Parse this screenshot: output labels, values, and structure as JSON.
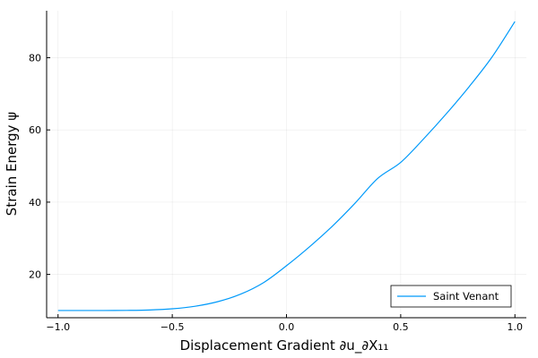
{
  "colors": {
    "series": "#009AFA",
    "background": "#FFFFFF",
    "axis": "#000000"
  },
  "chart_data": {
    "type": "line",
    "title": "",
    "xlabel": "Displacement Gradient ∂u_∂X₁₁",
    "ylabel": "Strain Energy ψ",
    "xlim": [
      -1.05,
      1.05
    ],
    "ylim": [
      8,
      93
    ],
    "x_ticks": [
      -1.0,
      -0.5,
      0.0,
      0.5,
      1.0
    ],
    "x_tick_labels": [
      "−1.0",
      "−0.5",
      "0.0",
      "0.5",
      "1.0"
    ],
    "y_ticks": [
      20,
      40,
      60,
      80
    ],
    "y_tick_labels": [
      "20",
      "40",
      "60",
      "80"
    ],
    "grid": true,
    "legend_position": "bottom-right",
    "series": [
      {
        "name": "Saint Venant",
        "color": "#009AFA",
        "x": [
          -1.0,
          -0.9,
          -0.8,
          -0.7,
          -0.6,
          -0.5,
          -0.4,
          -0.3,
          -0.2,
          -0.1,
          0.0,
          0.1,
          0.2,
          0.3,
          0.4,
          0.5,
          0.6,
          0.7,
          0.8,
          0.9,
          1.0
        ],
        "y": [
          10.0,
          10.0,
          10.0,
          10.03,
          10.14,
          10.47,
          11.18,
          12.46,
          14.55,
          17.74,
          22.4,
          27.6,
          33.3,
          39.7,
          46.6,
          51.0,
          57.5,
          64.5,
          72.0,
          80.2,
          90.0
        ]
      }
    ]
  }
}
